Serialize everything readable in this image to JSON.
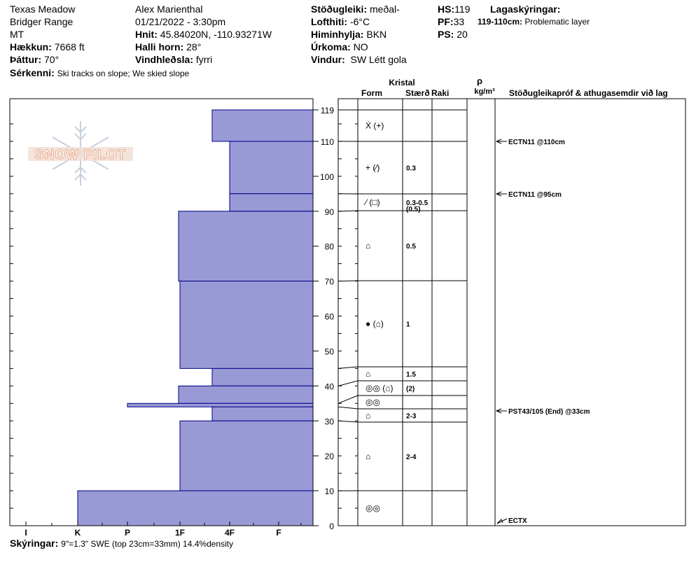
{
  "header": {
    "location": "Texas Meadow",
    "range": "Bridger Range",
    "state": "MT",
    "elevation_label": "Hækkun:",
    "elevation": "7668 ft",
    "aspect_label": "Þáttur:",
    "aspect": "70°",
    "observer": "Alex Marienthal",
    "datetime": "01/21/2022 - 3:30pm",
    "coords_label": "Hnit:",
    "coords": "45.84020N, -110.93271W",
    "slope_label": "Halli horn:",
    "slope": "28°",
    "wind_loading_label": "Vindhleðsla:",
    "wind_loading": "fyrri",
    "stability_label": "Stöðugleiki:",
    "stability": "meðal-",
    "air_temp_label": "Lofthiti:",
    "air_temp": "-6°C",
    "sky_label": "Himinhylja:",
    "sky": "BKN",
    "precip_label": "Úrkoma:",
    "precip": "NO",
    "wind_label": "Vindur:",
    "wind": "SW Létt gola",
    "hs_label": "HS:",
    "hs": "119",
    "pf_label": "PF:",
    "pf": "33",
    "ps_label": "PS:",
    "ps": "20",
    "layer_notes_label": "Lagaskýringar:",
    "layer_note_depth": "119-110cm:",
    "layer_note_text": "Problematic layer",
    "features_label": "Sérkenni:",
    "features": "Ski tracks on slope; We skied slope"
  },
  "footer": {
    "notes_label": "Skýringar:",
    "notes": "9\"=1.3\" SWE (top 23cm=33mm) 14.4%density"
  },
  "logo_text": "SNOW PILOT",
  "table_headers": {
    "crystal": "Kristal",
    "form": "Form",
    "size": "Stærð",
    "moisture": "Raki",
    "rho": "ρ",
    "density_unit": "kg/m³",
    "tests": "Stöðugleikapróf & athugasemdir við lag"
  },
  "colors": {
    "hardness_fill": "#9999d6",
    "hardness_stroke": "#00008b"
  },
  "chart_data": {
    "type": "bar",
    "hs": 119,
    "ylim": [
      0,
      119
    ],
    "y_ticks": [
      0,
      10,
      20,
      30,
      40,
      50,
      60,
      70,
      80,
      90,
      100,
      110,
      119
    ],
    "hardness_scale": [
      "I",
      "K",
      "P",
      "1F",
      "4F",
      "F"
    ],
    "hardness_layers": [
      {
        "top": 119,
        "bottom": 110,
        "hardness": "4F+"
      },
      {
        "top": 110,
        "bottom": 95,
        "hardness": "4F"
      },
      {
        "top": 95,
        "bottom": 90,
        "hardness": "4F"
      },
      {
        "top": 90,
        "bottom": 70,
        "hardness": "1F+"
      },
      {
        "top": 70,
        "bottom": 45,
        "hardness": "1F"
      },
      {
        "top": 45,
        "bottom": 40,
        "hardness": "4F+"
      },
      {
        "top": 40,
        "bottom": 35,
        "hardness": "1F+"
      },
      {
        "top": 35,
        "bottom": 34,
        "hardness": "P"
      },
      {
        "top": 34,
        "bottom": 30,
        "hardness": "4F+"
      },
      {
        "top": 30,
        "bottom": 10,
        "hardness": "1F"
      },
      {
        "top": 10,
        "bottom": 0,
        "hardness": "K"
      }
    ],
    "crystal_layers": [
      {
        "top": 119,
        "bottom": 110,
        "form": "Ẋ (+)",
        "size": ""
      },
      {
        "top": 110,
        "bottom": 95,
        "form": "+ (⁄)",
        "size": "0.3"
      },
      {
        "top": 95,
        "bottom": 90,
        "form": "⁄ (□)",
        "size": "0.3-0.5",
        "size2": "(0.5)"
      },
      {
        "top": 90,
        "bottom": 70,
        "form": "⌂",
        "size": "0.5"
      },
      {
        "top": 70,
        "bottom": 45,
        "form": "● (⌂)",
        "size": "1"
      },
      {
        "top": 45,
        "bottom": 40,
        "form": "⌂",
        "size": "1.5"
      },
      {
        "top": 40,
        "bottom": 35,
        "form": "◎◎ (⌂)",
        "size": "(2)"
      },
      {
        "top": 35,
        "bottom": 34,
        "form": "◎◎",
        "size": ""
      },
      {
        "top": 34,
        "bottom": 30,
        "form": "⌂",
        "size": "2-3"
      },
      {
        "top": 30,
        "bottom": 10,
        "form": "⌂",
        "size": "2-4"
      },
      {
        "top": 10,
        "bottom": 0,
        "form": "◎◎",
        "size": ""
      }
    ],
    "tests": [
      {
        "depth": 110,
        "label": "ECTN11 @110cm"
      },
      {
        "depth": 95,
        "label": "ECTN11 @95cm"
      },
      {
        "depth": 33,
        "label": "PST43/105 (End) @33cm"
      },
      {
        "depth": 0,
        "label": "ECTX"
      }
    ]
  }
}
